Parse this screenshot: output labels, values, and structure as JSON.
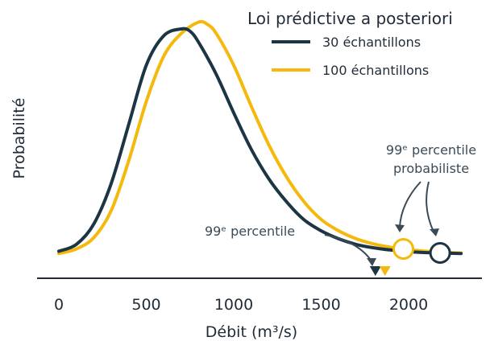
{
  "chart_data": {
    "type": "line",
    "xlabel": "Débit (m³/s)",
    "ylabel": "Probabilité",
    "xlim": [
      -100,
      2400
    ],
    "x_ticks": [
      0,
      500,
      1000,
      1500,
      2000
    ],
    "y_ticks_shown": false,
    "grid": false,
    "legend": {
      "title": "Loi prédictive a posteriori",
      "placement": "top-right"
    },
    "series": [
      {
        "name": "30 échantillons",
        "color": "#1c3545",
        "x": [
          0,
          100,
          200,
          300,
          400,
          500,
          600,
          700,
          750,
          800,
          900,
          1000,
          1100,
          1200,
          1300,
          1400,
          1500,
          1600,
          1700,
          1800,
          1900,
          2000,
          2100,
          2200,
          2300
        ],
        "y": [
          0.02,
          0.05,
          0.14,
          0.32,
          0.58,
          0.84,
          0.97,
          1.0,
          0.99,
          0.94,
          0.8,
          0.63,
          0.47,
          0.34,
          0.24,
          0.16,
          0.11,
          0.075,
          0.05,
          0.035,
          0.025,
          0.018,
          0.014,
          0.012,
          0.01
        ],
        "percentile_99": 1810,
        "percentile_99_probabiliste": 2180
      },
      {
        "name": "100 échantillons",
        "color": "#f5b80d",
        "x": [
          0,
          100,
          200,
          300,
          400,
          500,
          600,
          700,
          800,
          850,
          900,
          1000,
          1100,
          1200,
          1300,
          1400,
          1500,
          1600,
          1700,
          1800,
          1900,
          2000,
          2100,
          2200,
          2300
        ],
        "y": [
          0.01,
          0.03,
          0.08,
          0.2,
          0.42,
          0.68,
          0.88,
          0.98,
          1.03,
          1.02,
          0.98,
          0.84,
          0.66,
          0.49,
          0.35,
          0.24,
          0.16,
          0.11,
          0.075,
          0.052,
          0.037,
          0.027,
          0.02,
          0.015,
          0.012
        ],
        "percentile_99": 1865,
        "percentile_99_probabiliste": 1970
      }
    ],
    "annotations": [
      {
        "text_lines": [
          "99ᵉ percentile"
        ]
      },
      {
        "text_lines": [
          "99ᵉ percentile",
          "probabiliste"
        ]
      }
    ]
  }
}
